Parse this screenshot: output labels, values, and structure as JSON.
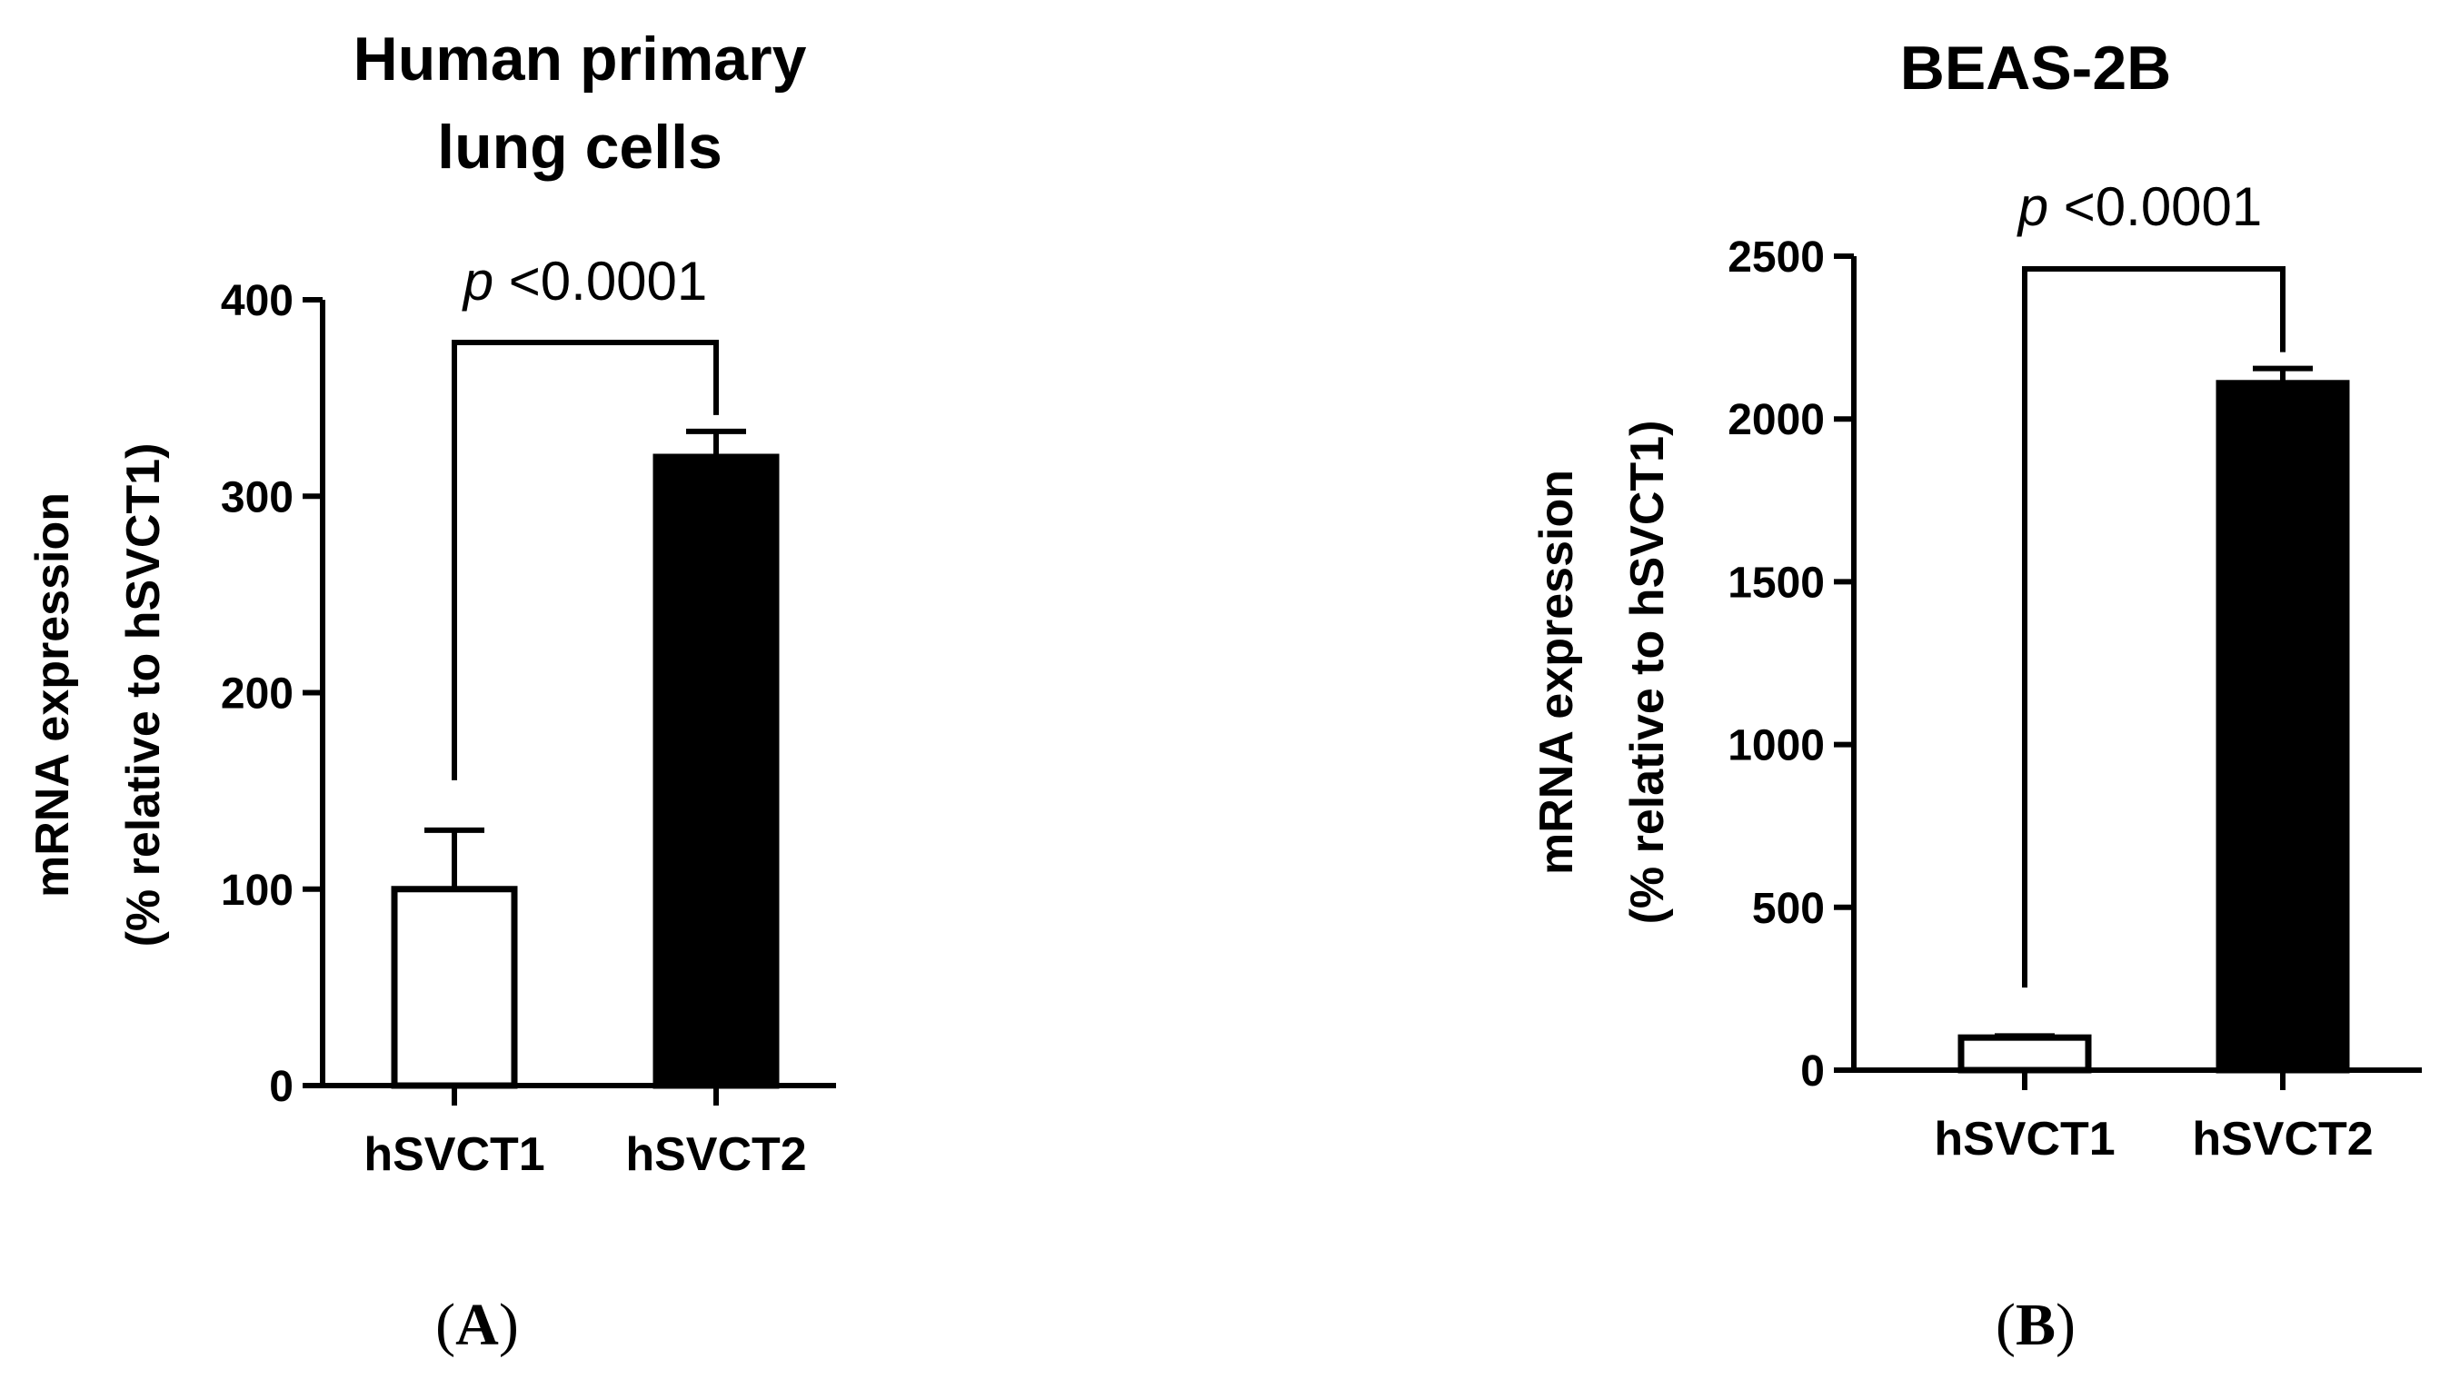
{
  "chart_data": [
    {
      "type": "bar",
      "panel_label": "A",
      "title_lines": [
        "Human primary",
        "lung cells"
      ],
      "ylabel_lines": [
        "mRNA expression",
        "(% relative to hSVCT1)"
      ],
      "categories": [
        "hSVCT1",
        "hSVCT2"
      ],
      "values": [
        100,
        320
      ],
      "errors": [
        30,
        13
      ],
      "fills": [
        "#ffffff",
        "#000000"
      ],
      "ylim": [
        0,
        400
      ],
      "yticks": [
        0,
        100,
        200,
        300,
        400
      ],
      "annotation": {
        "p_symbol": "p",
        "p_value": "<0.0001"
      }
    },
    {
      "type": "bar",
      "panel_label": "B",
      "title_lines": [
        "BEAS-2B"
      ],
      "ylabel_lines": [
        "mRNA expression",
        "(% relative to hSVCT1)"
      ],
      "categories": [
        "hSVCT1",
        "hSVCT2"
      ],
      "values": [
        100,
        2110
      ],
      "errors": [
        5,
        45
      ],
      "fills": [
        "#ffffff",
        "#000000"
      ],
      "ylim": [
        0,
        2500
      ],
      "yticks": [
        0,
        500,
        1000,
        1500,
        2000,
        2500
      ],
      "annotation": {
        "p_symbol": "p",
        "p_value": "<0.0001"
      }
    }
  ]
}
